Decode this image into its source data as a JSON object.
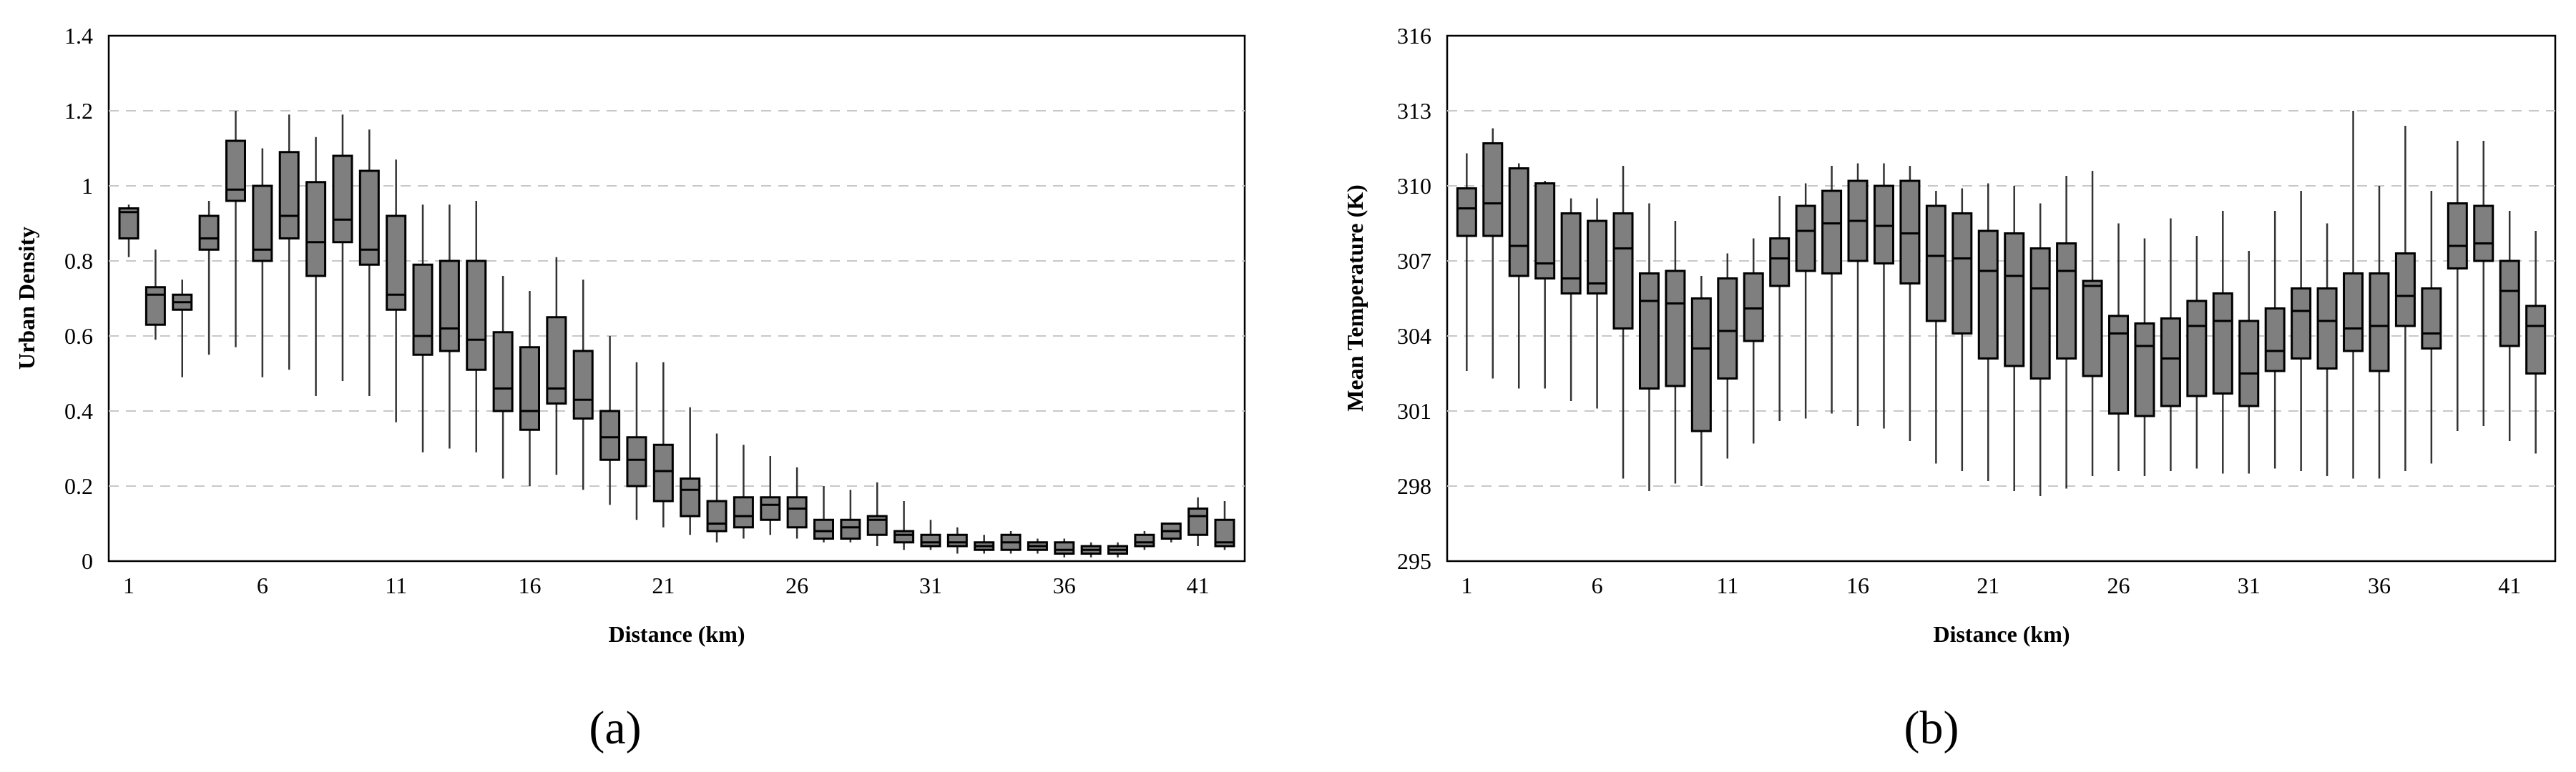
{
  "chart_data": [
    {
      "type": "boxplot",
      "panel_label": "(a)",
      "xlabel": "Distance (km)",
      "ylabel": "Urban Density",
      "ylim": [
        0,
        1.4
      ],
      "yticks": [
        0,
        0.2,
        0.4,
        0.6,
        0.8,
        1,
        1.2,
        1.4
      ],
      "ytick_labels": [
        "0",
        "0.2",
        "0.4",
        "0.6",
        "0.8",
        "1",
        "1.2",
        "1.4"
      ],
      "xtick_labels": [
        "1",
        "6",
        "11",
        "16",
        "21",
        "26",
        "31",
        "36",
        "41"
      ],
      "grid": "horizontal dashed",
      "box_color": "#7f7f7f",
      "x": [
        1,
        2,
        3,
        4,
        5,
        6,
        7,
        8,
        9,
        10,
        11,
        12,
        13,
        14,
        15,
        16,
        17,
        18,
        19,
        20,
        21,
        22,
        23,
        24,
        25,
        26,
        27,
        28,
        29,
        30,
        31,
        32,
        33,
        34,
        35,
        36,
        37,
        38,
        39,
        40,
        41,
        42
      ],
      "whisker_low": [
        0.81,
        0.59,
        0.49,
        0.55,
        0.57,
        0.49,
        0.51,
        0.44,
        0.48,
        0.44,
        0.37,
        0.29,
        0.3,
        0.29,
        0.22,
        0.2,
        0.23,
        0.19,
        0.15,
        0.11,
        0.09,
        0.07,
        0.05,
        0.06,
        0.07,
        0.06,
        0.05,
        0.05,
        0.04,
        0.03,
        0.03,
        0.02,
        0.02,
        0.02,
        0.02,
        0.01,
        0.01,
        0.01,
        0.03,
        0.05,
        0.04,
        0.03
      ],
      "q1": [
        0.86,
        0.63,
        0.67,
        0.83,
        0.96,
        0.8,
        0.86,
        0.76,
        0.85,
        0.79,
        0.67,
        0.55,
        0.56,
        0.51,
        0.4,
        0.35,
        0.42,
        0.38,
        0.27,
        0.2,
        0.16,
        0.12,
        0.08,
        0.09,
        0.11,
        0.09,
        0.06,
        0.06,
        0.07,
        0.05,
        0.04,
        0.04,
        0.03,
        0.03,
        0.03,
        0.02,
        0.02,
        0.02,
        0.04,
        0.06,
        0.07,
        0.04
      ],
      "median": [
        0.93,
        0.71,
        0.69,
        0.86,
        0.99,
        0.83,
        0.92,
        0.85,
        0.91,
        0.83,
        0.71,
        0.6,
        0.62,
        0.59,
        0.46,
        0.4,
        0.46,
        0.43,
        0.33,
        0.27,
        0.24,
        0.19,
        0.1,
        0.12,
        0.15,
        0.14,
        0.08,
        0.09,
        0.11,
        0.07,
        0.05,
        0.05,
        0.04,
        0.05,
        0.04,
        0.03,
        0.03,
        0.03,
        0.05,
        0.08,
        0.12,
        0.05
      ],
      "q3": [
        0.94,
        0.73,
        0.71,
        0.92,
        1.12,
        1.0,
        1.09,
        1.01,
        1.08,
        1.04,
        0.92,
        0.79,
        0.8,
        0.8,
        0.61,
        0.57,
        0.65,
        0.56,
        0.4,
        0.33,
        0.31,
        0.22,
        0.16,
        0.17,
        0.17,
        0.17,
        0.11,
        0.11,
        0.12,
        0.08,
        0.07,
        0.07,
        0.05,
        0.07,
        0.05,
        0.05,
        0.04,
        0.04,
        0.07,
        0.1,
        0.14,
        0.11
      ],
      "whisker_high": [
        0.95,
        0.83,
        0.75,
        0.96,
        1.2,
        1.1,
        1.19,
        1.13,
        1.19,
        1.15,
        1.07,
        0.95,
        0.95,
        0.96,
        0.76,
        0.72,
        0.81,
        0.75,
        0.6,
        0.53,
        0.53,
        0.41,
        0.34,
        0.31,
        0.28,
        0.25,
        0.2,
        0.19,
        0.21,
        0.16,
        0.11,
        0.09,
        0.07,
        0.08,
        0.06,
        0.06,
        0.05,
        0.05,
        0.08,
        0.1,
        0.17,
        0.16
      ]
    },
    {
      "type": "boxplot",
      "panel_label": "(b)",
      "xlabel": "Distance (km)",
      "ylabel": "Mean Temperature (K)",
      "ylim": [
        295,
        316
      ],
      "yticks": [
        295,
        298,
        301,
        304,
        307,
        310,
        313,
        316
      ],
      "ytick_labels": [
        "295",
        "298",
        "301",
        "304",
        "307",
        "310",
        "313",
        "316"
      ],
      "xtick_labels": [
        "1",
        "6",
        "11",
        "16",
        "21",
        "26",
        "31",
        "36",
        "41"
      ],
      "grid": "horizontal dashed",
      "box_color": "#7f7f7f",
      "x": [
        1,
        2,
        3,
        4,
        5,
        6,
        7,
        8,
        9,
        10,
        11,
        12,
        13,
        14,
        15,
        16,
        17,
        18,
        19,
        20,
        21,
        22,
        23,
        24,
        25,
        26,
        27,
        28,
        29,
        30,
        31,
        32,
        33,
        34,
        35,
        36,
        37,
        38,
        39,
        40,
        41,
        42
      ],
      "whisker_low": [
        302.6,
        302.3,
        301.9,
        301.9,
        301.4,
        301.1,
        298.3,
        297.8,
        298.1,
        298.0,
        299.1,
        299.7,
        300.6,
        300.7,
        300.9,
        300.4,
        300.3,
        299.8,
        298.9,
        298.6,
        298.2,
        297.8,
        297.6,
        297.9,
        298.4,
        298.6,
        298.4,
        298.6,
        298.7,
        298.5,
        298.5,
        298.7,
        298.6,
        298.4,
        298.3,
        298.3,
        298.6,
        298.9,
        300.2,
        300.4,
        299.8,
        299.3
      ],
      "q1": [
        308.0,
        308.0,
        306.4,
        306.3,
        305.7,
        305.7,
        304.3,
        301.9,
        302.0,
        300.2,
        302.3,
        303.8,
        306.0,
        306.6,
        306.5,
        307.0,
        306.9,
        306.1,
        304.6,
        304.1,
        303.1,
        302.8,
        302.3,
        303.1,
        302.4,
        300.9,
        300.8,
        301.2,
        301.6,
        301.7,
        301.2,
        302.6,
        303.1,
        302.7,
        303.4,
        302.6,
        304.4,
        303.5,
        306.7,
        307.0,
        303.6,
        302.5
      ],
      "median": [
        309.1,
        309.3,
        307.6,
        306.9,
        306.3,
        306.1,
        307.5,
        305.4,
        305.3,
        303.5,
        304.2,
        305.1,
        307.1,
        308.2,
        308.5,
        308.6,
        308.4,
        308.1,
        307.2,
        307.1,
        306.6,
        306.4,
        305.9,
        306.6,
        306.0,
        304.1,
        303.6,
        303.1,
        304.4,
        304.6,
        302.5,
        303.4,
        305.0,
        304.6,
        304.3,
        304.4,
        305.6,
        304.1,
        307.6,
        307.7,
        305.8,
        304.4
      ],
      "q3": [
        309.9,
        311.7,
        310.7,
        310.1,
        308.9,
        308.6,
        308.9,
        306.5,
        306.6,
        305.5,
        306.3,
        306.5,
        307.9,
        309.2,
        309.8,
        310.2,
        310.0,
        310.2,
        309.2,
        308.9,
        308.2,
        308.1,
        307.5,
        307.7,
        306.2,
        304.8,
        304.5,
        304.7,
        305.4,
        305.7,
        304.6,
        305.1,
        305.9,
        305.9,
        306.5,
        306.5,
        307.3,
        305.9,
        309.3,
        309.2,
        307.0,
        305.2
      ],
      "whisker_high": [
        311.3,
        312.3,
        310.9,
        310.2,
        309.5,
        309.5,
        310.8,
        309.3,
        308.6,
        306.4,
        307.3,
        307.9,
        309.6,
        310.1,
        310.8,
        310.9,
        310.9,
        310.8,
        309.8,
        309.9,
        310.1,
        310.0,
        309.3,
        310.4,
        310.6,
        308.5,
        307.9,
        308.7,
        308.0,
        309.0,
        307.4,
        309.0,
        309.8,
        308.5,
        313.0,
        310.0,
        312.4,
        309.8,
        311.8,
        311.8,
        309.0,
        308.2
      ]
    }
  ]
}
